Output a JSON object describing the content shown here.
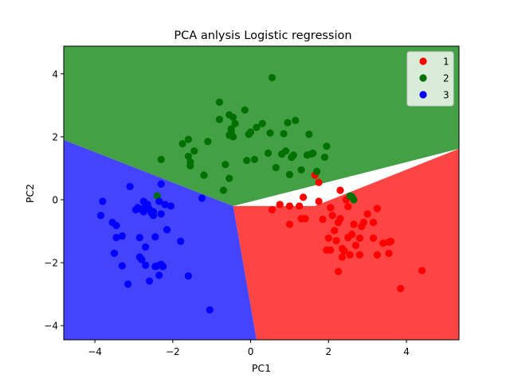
{
  "chart_data": {
    "type": "scatter",
    "title": "PCA anlysis Logistic regression",
    "xlabel": "PC1",
    "ylabel": "PC2",
    "xlim": [
      -4.8,
      5.35
    ],
    "ylim": [
      -4.45,
      4.88
    ],
    "xticks": [
      -4,
      -2,
      0,
      2,
      4
    ],
    "yticks": [
      -4,
      -2,
      0,
      2,
      4
    ],
    "xtick_labels": [
      "−4",
      "−2",
      "0",
      "2",
      "4"
    ],
    "ytick_labels": [
      "−4",
      "−2",
      "0",
      "2",
      "4"
    ],
    "grid": false,
    "legend_position": "top-right",
    "decision_regions": [
      {
        "name": "1",
        "color": "#ff4444",
        "polygon": [
          [
            -0.45,
            -0.2
          ],
          [
            1.65,
            -0.2
          ],
          [
            5.35,
            1.62
          ],
          [
            5.35,
            -4.45
          ],
          [
            0.15,
            -4.45
          ]
        ]
      },
      {
        "name": "2",
        "color": "#44a044",
        "polygon": [
          [
            -4.8,
            4.88
          ],
          [
            5.35,
            4.88
          ],
          [
            5.35,
            1.62
          ],
          [
            -0.45,
            -0.2
          ],
          [
            -4.8,
            1.9
          ]
        ]
      },
      {
        "name": "3",
        "color": "#4444ff",
        "polygon": [
          [
            -4.8,
            1.9
          ],
          [
            -0.45,
            -0.2
          ],
          [
            0.15,
            -4.45
          ],
          [
            -4.8,
            -4.45
          ]
        ]
      }
    ],
    "series": [
      {
        "name": "1",
        "color": "#ff0000",
        "points": [
          [
            0.55,
            -0.32
          ],
          [
            0.75,
            -0.15
          ],
          [
            1.0,
            -0.2
          ],
          [
            1.0,
            -0.78
          ],
          [
            1.3,
            -0.6
          ],
          [
            1.35,
            0.08
          ],
          [
            1.4,
            -0.6
          ],
          [
            1.65,
            0.78
          ],
          [
            1.75,
            0.55
          ],
          [
            1.75,
            -0.05
          ],
          [
            1.85,
            -0.62
          ],
          [
            1.95,
            -1.6
          ],
          [
            2.0,
            -1.22
          ],
          [
            2.05,
            -0.25
          ],
          [
            2.15,
            -0.98
          ],
          [
            2.2,
            -1.3
          ],
          [
            2.25,
            -0.72
          ],
          [
            2.25,
            -2.28
          ],
          [
            2.3,
            -0.6
          ],
          [
            2.3,
            0.3
          ],
          [
            2.35,
            -1.82
          ],
          [
            2.4,
            -1.62
          ],
          [
            2.45,
            0.0
          ],
          [
            2.5,
            -1.2
          ],
          [
            2.5,
            -0.22
          ],
          [
            2.55,
            -1.75
          ],
          [
            2.6,
            -1.1
          ],
          [
            2.65,
            -0.78
          ],
          [
            2.8,
            -1.75
          ],
          [
            2.8,
            -1.22
          ],
          [
            2.85,
            -0.85
          ],
          [
            2.9,
            -0.72
          ],
          [
            3.0,
            -0.45
          ],
          [
            3.15,
            -0.72
          ],
          [
            3.15,
            -1.22
          ],
          [
            3.25,
            -0.28
          ],
          [
            3.25,
            -1.75
          ],
          [
            3.4,
            -1.38
          ],
          [
            3.55,
            -1.35
          ],
          [
            3.55,
            -1.7
          ],
          [
            3.85,
            -2.82
          ],
          [
            4.4,
            -2.25
          ],
          [
            2.05,
            -1.6
          ],
          [
            3.6,
            -1.32
          ],
          [
            2.35,
            -1.55
          ],
          [
            2.7,
            -1.45
          ],
          [
            1.25,
            -0.2
          ],
          [
            2.1,
            -0.5
          ]
        ]
      },
      {
        "name": "2",
        "color": "#007000",
        "points": [
          [
            -2.4,
            0.12
          ],
          [
            -2.3,
            1.28
          ],
          [
            -1.75,
            1.78
          ],
          [
            -1.6,
            1.38
          ],
          [
            -1.6,
            1.92
          ],
          [
            -1.55,
            1.2
          ],
          [
            -1.55,
            1.08
          ],
          [
            -1.45,
            1.55
          ],
          [
            -1.2,
            0.78
          ],
          [
            -1.1,
            1.85
          ],
          [
            -0.8,
            3.1
          ],
          [
            -0.8,
            2.55
          ],
          [
            -0.7,
            0.3
          ],
          [
            -0.65,
            1.12
          ],
          [
            -0.55,
            2.05
          ],
          [
            -0.55,
            2.7
          ],
          [
            -0.55,
            0.68
          ],
          [
            -0.5,
            2.25
          ],
          [
            -0.5,
            2.15
          ],
          [
            -0.45,
            2.62
          ],
          [
            -0.45,
            2.0
          ],
          [
            -0.4,
            2.42
          ],
          [
            -0.15,
            2.85
          ],
          [
            -0.1,
            1.25
          ],
          [
            -0.05,
            2.08
          ],
          [
            0.0,
            2.15
          ],
          [
            0.1,
            1.28
          ],
          [
            0.15,
            2.3
          ],
          [
            0.3,
            2.42
          ],
          [
            0.45,
            1.48
          ],
          [
            0.55,
            3.88
          ],
          [
            0.5,
            2.12
          ],
          [
            0.65,
            1.02
          ],
          [
            0.8,
            1.45
          ],
          [
            0.85,
            2.1
          ],
          [
            0.9,
            1.55
          ],
          [
            0.95,
            2.45
          ],
          [
            1.0,
            0.8
          ],
          [
            1.05,
            1.35
          ],
          [
            1.1,
            1.42
          ],
          [
            1.15,
            2.52
          ],
          [
            1.3,
            0.95
          ],
          [
            1.45,
            1.42
          ],
          [
            1.5,
            2.08
          ],
          [
            1.55,
            1.45
          ],
          [
            1.6,
            1.48
          ],
          [
            1.7,
            0.9
          ],
          [
            1.9,
            1.35
          ],
          [
            1.95,
            1.7
          ],
          [
            2.65,
            0.0
          ],
          [
            2.6,
            0.1
          ],
          [
            2.55,
            0.12
          ]
        ]
      },
      {
        "name": "3",
        "color": "#0000ff",
        "points": [
          [
            -3.85,
            -0.5
          ],
          [
            -3.8,
            -0.05
          ],
          [
            -3.55,
            -0.72
          ],
          [
            -3.5,
            -1.7
          ],
          [
            -3.45,
            -1.2
          ],
          [
            -3.45,
            -0.82
          ],
          [
            -3.3,
            -1.15
          ],
          [
            -3.3,
            -2.1
          ],
          [
            -3.15,
            -2.68
          ],
          [
            -3.1,
            0.42
          ],
          [
            -2.95,
            -0.32
          ],
          [
            -2.9,
            -0.25
          ],
          [
            -2.85,
            -1.2
          ],
          [
            -2.85,
            -1.82
          ],
          [
            -2.8,
            -0.3
          ],
          [
            -2.8,
            -1.9
          ],
          [
            -2.75,
            -0.38
          ],
          [
            -2.75,
            -0.05
          ],
          [
            -2.7,
            -0.22
          ],
          [
            -2.7,
            -0.3
          ],
          [
            -2.7,
            -2.08
          ],
          [
            -2.7,
            -1.5
          ],
          [
            -2.65,
            -0.15
          ],
          [
            -2.6,
            -0.3
          ],
          [
            -2.6,
            -2.58
          ],
          [
            -2.5,
            -0.38
          ],
          [
            -2.5,
            -0.5
          ],
          [
            -2.45,
            -1.18
          ],
          [
            -2.45,
            -2.12
          ],
          [
            -2.4,
            -2.1
          ],
          [
            -2.35,
            -2.4
          ],
          [
            -2.35,
            -0.05
          ],
          [
            -2.3,
            -0.45
          ],
          [
            -2.3,
            0.5
          ],
          [
            -2.25,
            -2.12
          ],
          [
            -2.2,
            -0.15
          ],
          [
            -2.15,
            -0.95
          ],
          [
            -2.05,
            -0.2
          ],
          [
            -1.8,
            -1.32
          ],
          [
            -1.6,
            -2.42
          ],
          [
            -1.25,
            0.05
          ],
          [
            -1.05,
            -3.5
          ],
          [
            -2.55,
            -0.42
          ],
          [
            -2.9,
            -0.28
          ],
          [
            -2.3,
            -2.05
          ]
        ]
      }
    ]
  }
}
